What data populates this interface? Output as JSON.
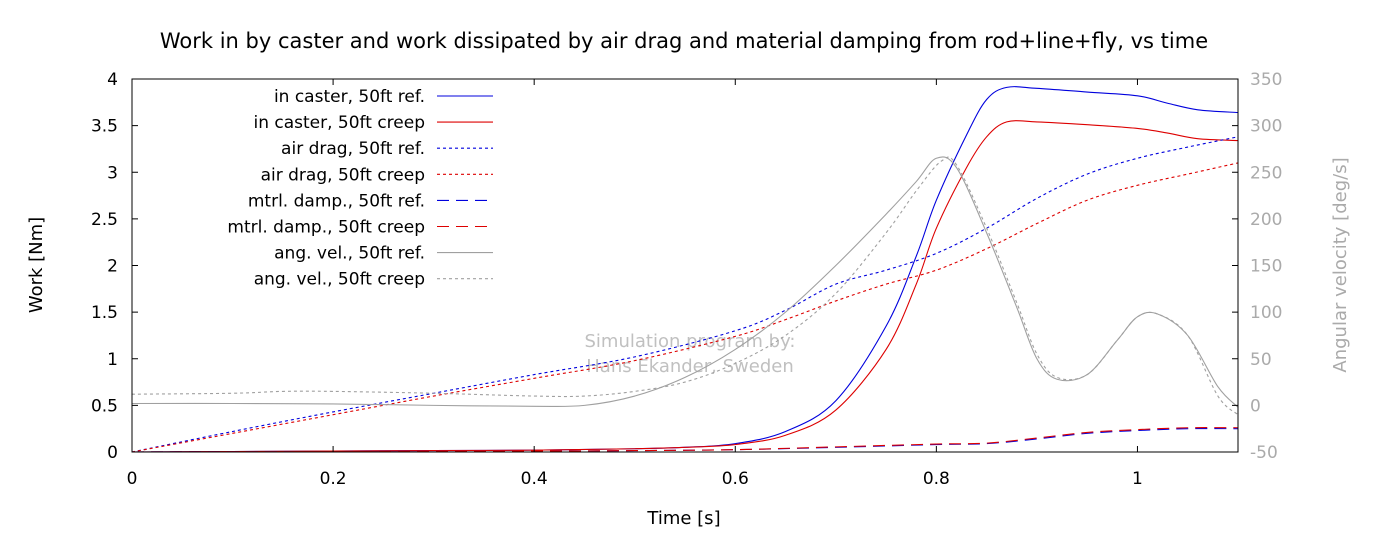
{
  "chart_data": {
    "type": "line",
    "title": "Work in by caster and work dissipated by air drag and material damping from rod+line+fly, vs time",
    "xlabel": "Time [s]",
    "ylabel": "Work [Nm]",
    "y2label": "Angular velocity [deg/s]",
    "xlim": [
      0,
      1.1
    ],
    "ylim": [
      0,
      4
    ],
    "y2lim": [
      -50,
      350
    ],
    "x_ticks": [
      "0",
      "0.2",
      "0.4",
      "0.6",
      "0.8",
      "1"
    ],
    "y_ticks": [
      "0",
      "0.5",
      "1",
      "1.5",
      "2",
      "2.5",
      "3",
      "3.5",
      "4"
    ],
    "y2_ticks": [
      "-50",
      "0",
      "50",
      "100",
      "150",
      "200",
      "250",
      "300",
      "350"
    ],
    "legend_position": "top-left",
    "grid": false,
    "watermark": [
      "Simulation program by:",
      "Hans Ekander, Sweden"
    ],
    "colors": {
      "ref": "#0000dd",
      "creep": "#dd0000",
      "angvel": "#a0a0a0",
      "angvel_axis": "#aaaaaa"
    },
    "series": [
      {
        "name": "in caster, 50ft ref.",
        "axis": "left",
        "color": "#0000dd",
        "dash": "solid",
        "points": [
          [
            0,
            0
          ],
          [
            0.1,
            0.005
          ],
          [
            0.2,
            0.01
          ],
          [
            0.3,
            0.015
          ],
          [
            0.4,
            0.02
          ],
          [
            0.5,
            0.035
          ],
          [
            0.55,
            0.05
          ],
          [
            0.6,
            0.09
          ],
          [
            0.65,
            0.22
          ],
          [
            0.7,
            0.55
          ],
          [
            0.75,
            1.35
          ],
          [
            0.78,
            2.1
          ],
          [
            0.8,
            2.7
          ],
          [
            0.83,
            3.4
          ],
          [
            0.85,
            3.78
          ],
          [
            0.87,
            3.91
          ],
          [
            0.9,
            3.9
          ],
          [
            0.95,
            3.86
          ],
          [
            1.0,
            3.82
          ],
          [
            1.03,
            3.74
          ],
          [
            1.06,
            3.67
          ],
          [
            1.1,
            3.64
          ]
        ]
      },
      {
        "name": "in caster, 50ft creep",
        "axis": "left",
        "color": "#dd0000",
        "dash": "solid",
        "points": [
          [
            0,
            0
          ],
          [
            0.1,
            0.005
          ],
          [
            0.2,
            0.01
          ],
          [
            0.3,
            0.015
          ],
          [
            0.4,
            0.02
          ],
          [
            0.5,
            0.035
          ],
          [
            0.55,
            0.05
          ],
          [
            0.6,
            0.08
          ],
          [
            0.65,
            0.18
          ],
          [
            0.7,
            0.45
          ],
          [
            0.75,
            1.1
          ],
          [
            0.78,
            1.8
          ],
          [
            0.8,
            2.4
          ],
          [
            0.83,
            3.05
          ],
          [
            0.85,
            3.38
          ],
          [
            0.87,
            3.54
          ],
          [
            0.9,
            3.54
          ],
          [
            0.95,
            3.51
          ],
          [
            1.0,
            3.47
          ],
          [
            1.03,
            3.42
          ],
          [
            1.06,
            3.36
          ],
          [
            1.1,
            3.34
          ]
        ]
      },
      {
        "name": "air drag, 50ft ref.",
        "axis": "left",
        "color": "#0000dd",
        "dash": "dotted",
        "points": [
          [
            0,
            0
          ],
          [
            0.1,
            0.22
          ],
          [
            0.2,
            0.43
          ],
          [
            0.3,
            0.63
          ],
          [
            0.4,
            0.83
          ],
          [
            0.5,
            1.02
          ],
          [
            0.6,
            1.3
          ],
          [
            0.65,
            1.52
          ],
          [
            0.7,
            1.8
          ],
          [
            0.75,
            1.95
          ],
          [
            0.8,
            2.13
          ],
          [
            0.85,
            2.4
          ],
          [
            0.9,
            2.72
          ],
          [
            0.95,
            2.98
          ],
          [
            1.0,
            3.15
          ],
          [
            1.05,
            3.27
          ],
          [
            1.1,
            3.38
          ]
        ]
      },
      {
        "name": "air drag, 50ft creep",
        "axis": "left",
        "color": "#dd0000",
        "dash": "dotted",
        "points": [
          [
            0,
            0
          ],
          [
            0.1,
            0.2
          ],
          [
            0.2,
            0.4
          ],
          [
            0.3,
            0.6
          ],
          [
            0.4,
            0.79
          ],
          [
            0.5,
            0.98
          ],
          [
            0.6,
            1.24
          ],
          [
            0.65,
            1.42
          ],
          [
            0.7,
            1.62
          ],
          [
            0.75,
            1.8
          ],
          [
            0.8,
            1.95
          ],
          [
            0.85,
            2.18
          ],
          [
            0.9,
            2.45
          ],
          [
            0.95,
            2.7
          ],
          [
            1.0,
            2.86
          ],
          [
            1.05,
            2.98
          ],
          [
            1.1,
            3.1
          ]
        ]
      },
      {
        "name": "mtrl. damp., 50ft ref.",
        "axis": "left",
        "color": "#0000dd",
        "dash": "dashed",
        "points": [
          [
            0,
            0
          ],
          [
            0.1,
            0.003
          ],
          [
            0.2,
            0.005
          ],
          [
            0.3,
            0.008
          ],
          [
            0.4,
            0.01
          ],
          [
            0.5,
            0.015
          ],
          [
            0.6,
            0.025
          ],
          [
            0.7,
            0.05
          ],
          [
            0.8,
            0.08
          ],
          [
            0.85,
            0.09
          ],
          [
            0.9,
            0.14
          ],
          [
            0.95,
            0.2
          ],
          [
            1.0,
            0.23
          ],
          [
            1.05,
            0.25
          ],
          [
            1.1,
            0.25
          ]
        ]
      },
      {
        "name": "mtrl. damp., 50ft creep",
        "axis": "left",
        "color": "#dd0000",
        "dash": "dashed",
        "points": [
          [
            0,
            0
          ],
          [
            0.1,
            0.003
          ],
          [
            0.2,
            0.005
          ],
          [
            0.3,
            0.008
          ],
          [
            0.4,
            0.01
          ],
          [
            0.5,
            0.015
          ],
          [
            0.6,
            0.025
          ],
          [
            0.7,
            0.055
          ],
          [
            0.8,
            0.085
          ],
          [
            0.85,
            0.095
          ],
          [
            0.9,
            0.15
          ],
          [
            0.95,
            0.21
          ],
          [
            1.0,
            0.24
          ],
          [
            1.05,
            0.26
          ],
          [
            1.1,
            0.26
          ]
        ]
      },
      {
        "name": "ang. vel., 50ft ref.",
        "axis": "right",
        "color": "#a0a0a0",
        "dash": "solid",
        "points": [
          [
            0,
            2
          ],
          [
            0.1,
            2
          ],
          [
            0.2,
            1.5
          ],
          [
            0.3,
            0
          ],
          [
            0.4,
            -1
          ],
          [
            0.45,
            0
          ],
          [
            0.5,
            10
          ],
          [
            0.55,
            30
          ],
          [
            0.6,
            60
          ],
          [
            0.65,
            100
          ],
          [
            0.7,
            150
          ],
          [
            0.75,
            205
          ],
          [
            0.78,
            240
          ],
          [
            0.8,
            265
          ],
          [
            0.82,
            255
          ],
          [
            0.85,
            185
          ],
          [
            0.88,
            105
          ],
          [
            0.9,
            50
          ],
          [
            0.92,
            28
          ],
          [
            0.95,
            33
          ],
          [
            0.98,
            70
          ],
          [
            1.0,
            95
          ],
          [
            1.02,
            98
          ],
          [
            1.05,
            75
          ],
          [
            1.08,
            20
          ],
          [
            1.1,
            -2
          ]
        ]
      },
      {
        "name": "ang. vel., 50ft creep",
        "axis": "right",
        "color": "#a0a0a0",
        "dash": "dotted",
        "points": [
          [
            0,
            12
          ],
          [
            0.1,
            13
          ],
          [
            0.15,
            15
          ],
          [
            0.2,
            15
          ],
          [
            0.3,
            13
          ],
          [
            0.4,
            10
          ],
          [
            0.45,
            10
          ],
          [
            0.5,
            15
          ],
          [
            0.55,
            25
          ],
          [
            0.6,
            45
          ],
          [
            0.65,
            75
          ],
          [
            0.7,
            120
          ],
          [
            0.75,
            185
          ],
          [
            0.78,
            230
          ],
          [
            0.805,
            262
          ],
          [
            0.82,
            258
          ],
          [
            0.85,
            190
          ],
          [
            0.88,
            110
          ],
          [
            0.9,
            55
          ],
          [
            0.92,
            30
          ],
          [
            0.95,
            33
          ],
          [
            0.98,
            70
          ],
          [
            1.0,
            95
          ],
          [
            1.02,
            98
          ],
          [
            1.05,
            75
          ],
          [
            1.08,
            10
          ],
          [
            1.1,
            -10
          ]
        ]
      }
    ]
  }
}
